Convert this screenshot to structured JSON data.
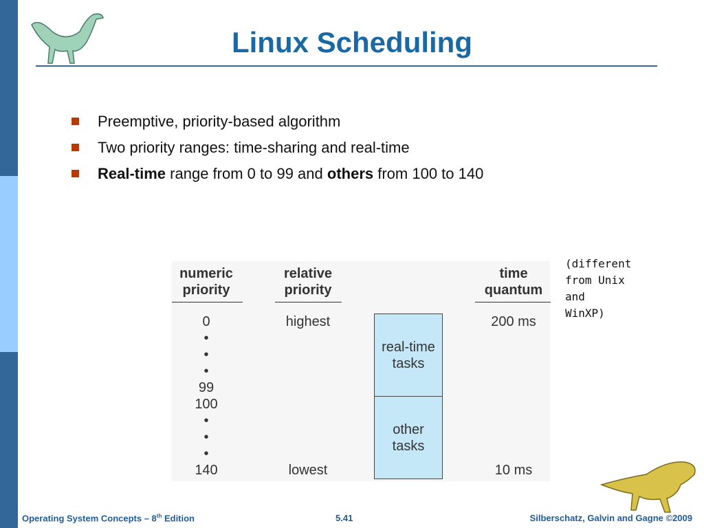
{
  "header": {
    "title": "Linux Scheduling"
  },
  "bullets": [
    [
      {
        "text": "Preemptive, priority-based algorithm",
        "bold": false
      }
    ],
    [
      {
        "text": "Two priority ranges: time-sharing and real-time",
        "bold": false
      }
    ],
    [
      {
        "text": "Real-time",
        "bold": true
      },
      {
        "text": " range from 0 to 99 and ",
        "bold": false
      },
      {
        "text": "others",
        "bold": true
      },
      {
        "text": " from 100 to 140",
        "bold": false
      }
    ]
  ],
  "figure": {
    "headers": {
      "numeric": [
        "numeric",
        "priority"
      ],
      "relative": [
        "relative",
        "priority"
      ],
      "quantum": [
        "time",
        "quantum"
      ]
    },
    "numeric_rows": [
      "0",
      "•",
      "•",
      "•",
      "99",
      "100",
      "•",
      "•",
      "•",
      "140"
    ],
    "relative_rows": [
      "highest",
      "lowest"
    ],
    "quantum_rows": [
      "200 ms",
      "10 ms"
    ],
    "boxes": [
      [
        "real-time",
        "tasks"
      ],
      [
        "other",
        "tasks"
      ]
    ]
  },
  "note": [
    "(different",
    "from Unix",
    "and",
    "WinXP)"
  ],
  "footer": {
    "left": [
      "Operating System Concepts – 8",
      "th",
      " Edition"
    ],
    "center": "5.41",
    "right": "Silberschatz, Galvin and Gagne ©2009"
  }
}
